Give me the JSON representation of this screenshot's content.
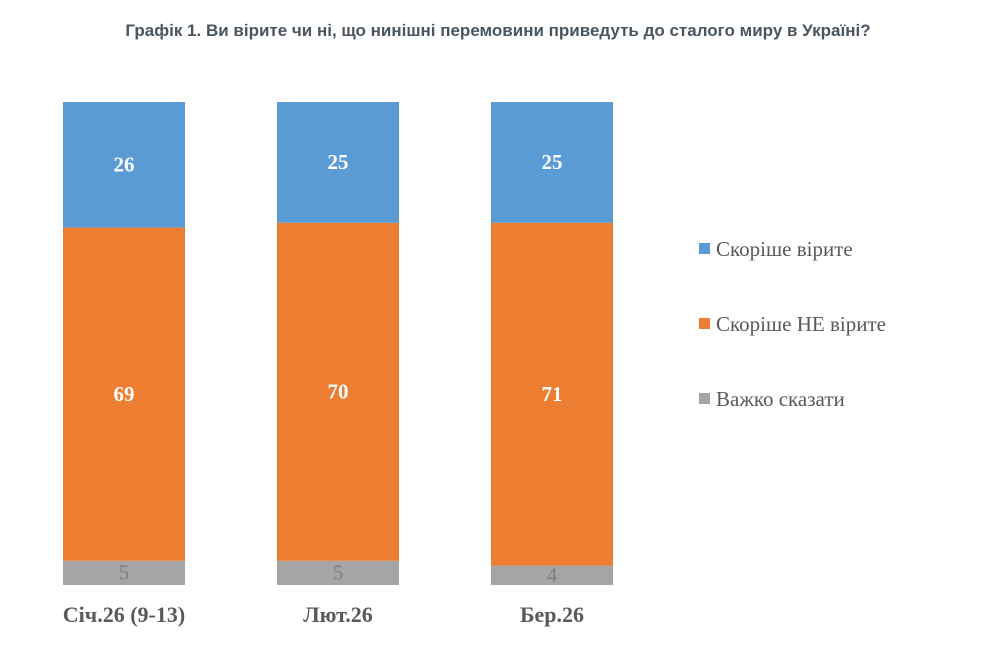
{
  "chart_data": {
    "type": "stacked-bar",
    "title": "Графік 1. Ви вірите чи ні, що нинішні перемовини приведуть до сталого миру в Україні?",
    "categories": [
      "Січ.26 (9-13)",
      "Лют.26",
      "Бер.26"
    ],
    "series": [
      {
        "name": "Скоріше вірите",
        "color": "#5b9bd5",
        "values": [
          26,
          25,
          25
        ]
      },
      {
        "name": "Скоріше НЕ вірите",
        "color": "#ed7d31",
        "values": [
          69,
          70,
          71
        ]
      },
      {
        "name": "Важко сказати",
        "color": "#a5a5a5",
        "values": [
          5,
          5,
          4
        ]
      }
    ],
    "legend": "right"
  }
}
